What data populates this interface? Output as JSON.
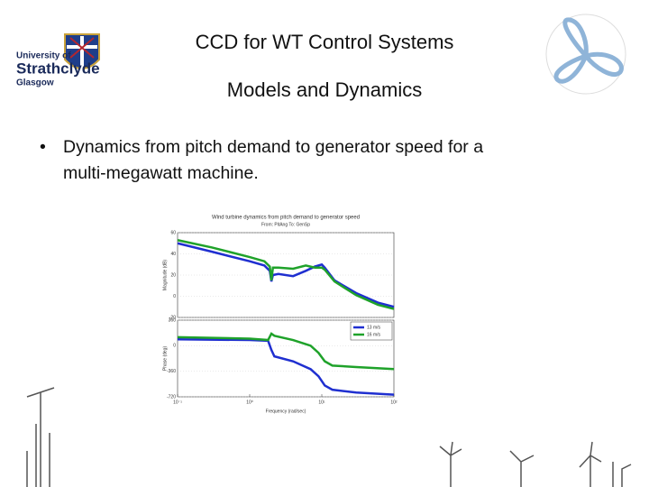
{
  "slide": {
    "title": "CCD for WT Control Systems",
    "subtitle": "Models and Dynamics",
    "bullet": [
      "Dynamics from pitch demand to generator speed for a",
      "multi-megawatt machine."
    ],
    "logo": [
      "University of",
      "Strathclyde",
      "Glasgow"
    ]
  },
  "chart_data": [
    {
      "type": "line",
      "title": "Wind turbine dynamics from pitch demand to generator speed",
      "subtitle": "From: PitAng  To: GenSp",
      "y_label": "Magnitude (dB)",
      "xscale": "log",
      "grid": true,
      "x": [
        0.1,
        0.3,
        1,
        1.6,
        1.9,
        2.0,
        2.1,
        2.5,
        4,
        6,
        8,
        10,
        11,
        15,
        30,
        60,
        100
      ],
      "xlim": [
        0.1,
        100
      ],
      "ylim": [
        -20,
        60
      ],
      "yticks": [
        -20,
        0,
        20,
        40,
        60
      ],
      "series": [
        {
          "color": "#1f2fd0",
          "values": [
            50,
            42,
            33,
            29,
            24,
            14,
            20,
            21,
            19,
            24,
            28,
            30,
            27,
            15,
            3,
            -6,
            -10
          ]
        },
        {
          "color": "#1fa22a",
          "values": [
            53,
            46,
            37,
            33,
            28,
            15,
            27,
            27,
            26,
            29,
            27,
            27,
            25,
            14,
            1,
            -8,
            -12
          ]
        }
      ]
    },
    {
      "type": "line",
      "y_label": "Phase (deg)",
      "x_label": "Frequency  (rad/sec)",
      "xscale": "log",
      "grid": true,
      "legend": "upper right",
      "x": [
        0.1,
        1,
        1.8,
        2.0,
        2.2,
        4,
        7,
        9,
        11,
        14,
        30,
        100
      ],
      "xlim": [
        0.1,
        100
      ],
      "ylim": [
        -720,
        360
      ],
      "yticks": [
        -720,
        -360,
        0,
        360
      ],
      "xticks": [
        {
          "value": 0.1,
          "label": "10⁻¹"
        },
        {
          "value": 1,
          "label": "10⁰"
        },
        {
          "value": 10,
          "label": "10¹"
        },
        {
          "value": 100,
          "label": "10²"
        }
      ],
      "series": [
        {
          "name": "13 m/s",
          "color": "#1f2fd0",
          "values": [
            90,
            80,
            70,
            -60,
            -150,
            -220,
            -330,
            -430,
            -560,
            -620,
            -660,
            -690
          ]
        },
        {
          "name": "16 m/s",
          "color": "#1fa22a",
          "values": [
            120,
            100,
            80,
            170,
            140,
            80,
            0,
            -100,
            -220,
            -280,
            -300,
            -330
          ]
        }
      ]
    }
  ]
}
